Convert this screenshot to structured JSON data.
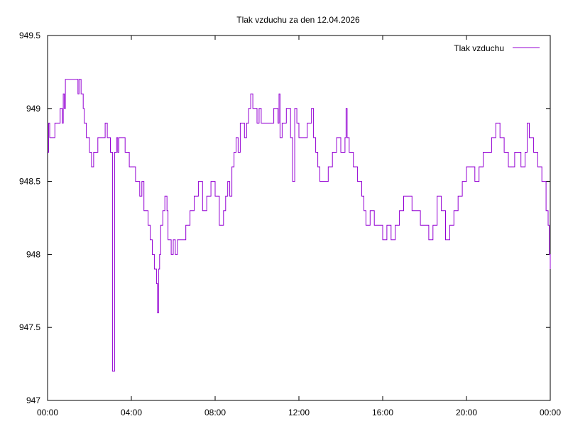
{
  "chart_data": {
    "type": "line",
    "title": "Tlak vzduchu za den 12.04.2026",
    "xlabel": "",
    "ylabel": "",
    "x_unit": "hours",
    "xlim": [
      0,
      24
    ],
    "ylim": [
      947,
      949.5
    ],
    "x_ticks": [
      0,
      4,
      8,
      12,
      16,
      20,
      24
    ],
    "x_tick_labels": [
      "00:00",
      "04:00",
      "08:00",
      "12:00",
      "16:00",
      "20:00",
      "00:00"
    ],
    "y_ticks": [
      947,
      947.5,
      948,
      948.5,
      949,
      949.5
    ],
    "y_tick_labels": [
      "947",
      "947.5",
      "948",
      "948.5",
      "949",
      "949.5"
    ],
    "grid": false,
    "legend_position": "top-right",
    "series": [
      {
        "name": "Tlak vzduchu",
        "color": "#9400d3",
        "line_style": "steps",
        "x": [
          0.0,
          0.05,
          0.1,
          0.2,
          0.35,
          0.5,
          0.6,
          0.7,
          0.75,
          0.8,
          0.85,
          0.9,
          1.0,
          1.2,
          1.4,
          1.45,
          1.5,
          1.6,
          1.7,
          1.75,
          1.85,
          2.0,
          2.1,
          2.15,
          2.2,
          2.3,
          2.4,
          2.6,
          2.75,
          2.85,
          3.0,
          3.1,
          3.2,
          3.3,
          3.35,
          3.4,
          3.5,
          3.6,
          3.7,
          3.8,
          3.9,
          4.0,
          4.2,
          4.3,
          4.4,
          4.5,
          4.6,
          4.7,
          4.8,
          4.9,
          5.0,
          5.1,
          5.2,
          5.25,
          5.3,
          5.35,
          5.4,
          5.5,
          5.6,
          5.7,
          5.75,
          5.8,
          5.9,
          6.0,
          6.1,
          6.2,
          6.4,
          6.6,
          6.8,
          7.0,
          7.2,
          7.4,
          7.5,
          7.6,
          7.8,
          8.0,
          8.2,
          8.3,
          8.4,
          8.5,
          8.6,
          8.7,
          8.8,
          8.9,
          9.0,
          9.1,
          9.2,
          9.3,
          9.4,
          9.5,
          9.6,
          9.7,
          9.8,
          10.0,
          10.1,
          10.2,
          10.4,
          10.6,
          10.8,
          11.0,
          11.05,
          11.1,
          11.2,
          11.4,
          11.6,
          11.7,
          11.8,
          11.9,
          12.0,
          12.2,
          12.4,
          12.6,
          12.7,
          12.8,
          12.9,
          13.0,
          13.2,
          13.4,
          13.6,
          13.8,
          14.0,
          14.2,
          14.25,
          14.3,
          14.4,
          14.5,
          14.6,
          14.8,
          15.0,
          15.1,
          15.2,
          15.4,
          15.6,
          15.8,
          16.0,
          16.2,
          16.4,
          16.6,
          16.8,
          17.0,
          17.2,
          17.4,
          17.6,
          17.8,
          18.0,
          18.2,
          18.4,
          18.6,
          18.8,
          19.0,
          19.2,
          19.4,
          19.6,
          19.8,
          20.0,
          20.2,
          20.4,
          20.6,
          20.8,
          21.0,
          21.2,
          21.4,
          21.6,
          21.8,
          22.0,
          22.2,
          22.3,
          22.4,
          22.6,
          22.8,
          22.9,
          23.0,
          23.2,
          23.4,
          23.6,
          23.8,
          23.9,
          23.95,
          24.0
        ],
        "y": [
          948.7,
          948.9,
          948.8,
          948.8,
          948.9,
          948.9,
          949.0,
          948.9,
          949.1,
          949.0,
          949.2,
          949.2,
          949.2,
          949.2,
          949.2,
          949.1,
          949.2,
          949.1,
          949.0,
          948.9,
          948.8,
          948.7,
          948.6,
          948.6,
          948.7,
          948.7,
          948.8,
          948.8,
          948.9,
          948.8,
          948.7,
          947.2,
          948.7,
          948.8,
          948.7,
          948.8,
          948.8,
          948.8,
          948.7,
          948.7,
          948.6,
          948.6,
          948.5,
          948.5,
          948.4,
          948.5,
          948.3,
          948.3,
          948.2,
          948.1,
          948.0,
          947.9,
          947.8,
          947.6,
          947.9,
          948.0,
          948.2,
          948.3,
          948.4,
          948.3,
          948.1,
          948.1,
          948.0,
          948.1,
          948.0,
          948.1,
          948.1,
          948.2,
          948.3,
          948.4,
          948.5,
          948.3,
          948.3,
          948.4,
          948.5,
          948.4,
          948.2,
          948.2,
          948.3,
          948.4,
          948.5,
          948.4,
          948.6,
          948.7,
          948.8,
          948.7,
          948.9,
          948.9,
          948.8,
          948.9,
          949.0,
          949.1,
          949.0,
          948.9,
          949.0,
          948.9,
          948.9,
          948.9,
          949.0,
          948.9,
          949.1,
          948.8,
          948.9,
          949.0,
          948.8,
          948.5,
          949.0,
          948.9,
          948.8,
          948.8,
          948.9,
          949.0,
          948.8,
          948.7,
          948.6,
          948.5,
          948.5,
          948.6,
          948.7,
          948.8,
          948.7,
          948.8,
          949.0,
          948.8,
          948.7,
          948.7,
          948.6,
          948.5,
          948.4,
          948.3,
          948.2,
          948.3,
          948.2,
          948.2,
          948.1,
          948.2,
          948.1,
          948.2,
          948.3,
          948.4,
          948.4,
          948.3,
          948.3,
          948.2,
          948.2,
          948.1,
          948.2,
          948.4,
          948.3,
          948.1,
          948.2,
          948.3,
          948.4,
          948.5,
          948.6,
          948.6,
          948.5,
          948.6,
          948.7,
          948.7,
          948.8,
          948.9,
          948.8,
          948.7,
          948.6,
          948.6,
          948.7,
          948.7,
          948.6,
          948.7,
          948.9,
          948.8,
          948.7,
          948.6,
          948.5,
          948.3,
          948.2,
          948.0,
          947.9
        ]
      }
    ]
  }
}
